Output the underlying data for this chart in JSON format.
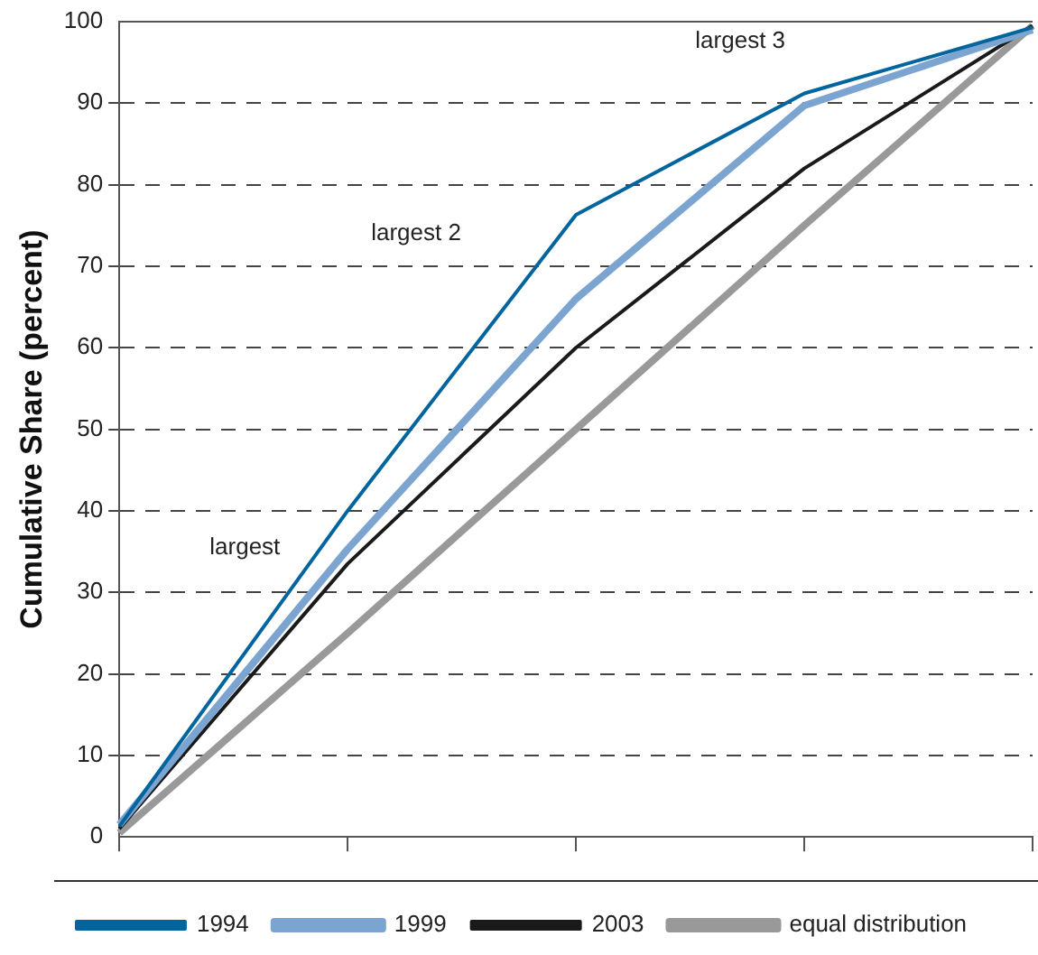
{
  "chart_data": {
    "type": "line",
    "ylabel": "Cumulative Share (percent)",
    "categories": [
      null,
      null,
      null,
      null,
      null
    ],
    "ylim": [
      0,
      100
    ],
    "yticks": [
      0,
      10,
      20,
      30,
      40,
      50,
      60,
      70,
      80,
      90,
      100
    ],
    "grid": "y",
    "legend": "bottom",
    "marker": "none",
    "series": [
      {
        "name": "1994",
        "color": "#00649e",
        "values": [
          1.3,
          40,
          76.3,
          91.2,
          99.3
        ]
      },
      {
        "name": "1999",
        "color": "#7ba4d0",
        "values": [
          1.5,
          35.3,
          66,
          89.7,
          99
        ]
      },
      {
        "name": "2003",
        "color": "#1a1a1a",
        "values": [
          1,
          33.5,
          60,
          82,
          99.5
        ]
      },
      {
        "name": "equal distribution",
        "color": "#999999",
        "values": [
          0.5,
          25,
          50,
          75,
          99.5
        ]
      }
    ],
    "annotations": [
      "largest",
      "largest 2",
      "largest 3"
    ]
  }
}
